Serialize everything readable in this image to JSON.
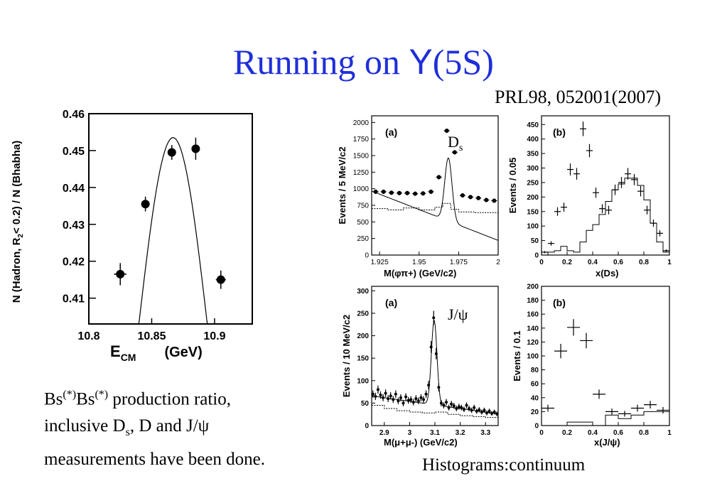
{
  "slide": {
    "title_prefix": "Running on ",
    "title_upsilon": "Υ",
    "title_suffix": "(5S)",
    "reference": "PRL98, 052001(2007)",
    "caption_lines": [
      [
        "Bs",
        "(*)",
        "Bs",
        "(*)",
        " production ratio,"
      ],
      [
        "inclusive D",
        "s",
        ", D and J/ψ"
      ],
      [
        "measurements have been done."
      ]
    ],
    "histogram_note": "Histograms:continuum"
  },
  "chart_data": [
    {
      "id": "scan",
      "type": "scatter",
      "xlabel_main": "E",
      "xlabel_sub": "CM",
      "xunit": "(GeV)",
      "ylabel": "N (Hadron, R2< 0.2) / N (Bhabha)",
      "ylabel_parts": [
        "N (Hadron, R",
        "2",
        "< 0.2) / N (Bhabha)"
      ],
      "xlim": [
        10.8,
        10.93
      ],
      "ylim": [
        0.403,
        0.46
      ],
      "xticks": [
        10.8,
        10.85,
        10.9
      ],
      "xticklabels": [
        "10.8",
        "10.85",
        "10.9"
      ],
      "yticks": [
        0.41,
        0.42,
        0.43,
        0.44,
        0.45,
        0.46
      ],
      "yticklabels": [
        "0.41",
        "0.42",
        "0.43",
        "0.44",
        "0.45",
        "0.46"
      ],
      "points": [
        {
          "x": 10.825,
          "y": 0.4165,
          "xerr": 0.005,
          "yerr": 0.003
        },
        {
          "x": 10.845,
          "y": 0.4355,
          "xerr": 0.003,
          "yerr": 0.002
        },
        {
          "x": 10.866,
          "y": 0.4495,
          "xerr": 0.003,
          "yerr": 0.002
        },
        {
          "x": 10.885,
          "y": 0.4505,
          "xerr": 0.003,
          "yerr": 0.003
        },
        {
          "x": 10.905,
          "y": 0.415,
          "xerr": 0.004,
          "yerr": 0.0025
        }
      ],
      "fit": {
        "peak_x": 10.867,
        "peak_y": 0.4535,
        "width": 0.0272,
        "x_range": [
          10.815,
          10.918
        ]
      }
    },
    {
      "id": "ds-mass",
      "type": "scatter",
      "panel_label": "(a)",
      "annotation": "Ds",
      "annotation_main": "D",
      "annotation_sub": "s",
      "xlabel": "M(φπ+)   (GeV/c2)",
      "ylabel": "Events / 5 MeV/c2",
      "xlim": [
        1.92,
        2.0
      ],
      "ylim": [
        0,
        2100
      ],
      "xticks": [
        1.925,
        1.95,
        1.975,
        2.0
      ],
      "xticklabels": [
        "1.925",
        "1.95",
        "1.975",
        "2"
      ],
      "yticks": [
        0,
        250,
        500,
        750,
        1000,
        1250,
        1500,
        1750,
        2000
      ],
      "yticklabels": [
        "0",
        "250",
        "500",
        "750",
        "1000",
        "1250",
        "1500",
        "1750",
        "2000"
      ],
      "points": [
        {
          "x": 1.9225,
          "y": 955
        },
        {
          "x": 1.9275,
          "y": 955
        },
        {
          "x": 1.9325,
          "y": 940
        },
        {
          "x": 1.9375,
          "y": 935
        },
        {
          "x": 1.9425,
          "y": 935
        },
        {
          "x": 1.9475,
          "y": 925
        },
        {
          "x": 1.9525,
          "y": 930
        },
        {
          "x": 1.9575,
          "y": 955
        },
        {
          "x": 1.9625,
          "y": 1175
        },
        {
          "x": 1.9675,
          "y": 1875
        },
        {
          "x": 1.9725,
          "y": 1550
        },
        {
          "x": 1.9775,
          "y": 900
        },
        {
          "x": 1.9825,
          "y": 875
        },
        {
          "x": 1.9875,
          "y": 860
        },
        {
          "x": 1.9925,
          "y": 830
        },
        {
          "x": 1.9975,
          "y": 820
        },
        {
          "x": 2.0025,
          "y": 790
        }
      ],
      "fit": {
        "bg_a": 965,
        "bg_slope": -9300,
        "x0": 1.92,
        "peak_x": 1.9685,
        "peak_amp": 950,
        "sigma": 0.0023
      },
      "continuum": [
        {
          "x0": 1.92,
          "x1": 1.93,
          "y": 700
        },
        {
          "x0": 1.93,
          "x1": 1.94,
          "y": 680
        },
        {
          "x0": 1.94,
          "x1": 1.95,
          "y": 710
        },
        {
          "x0": 1.95,
          "x1": 1.96,
          "y": 680
        },
        {
          "x0": 1.96,
          "x1": 1.965,
          "y": 720
        },
        {
          "x0": 1.965,
          "x1": 1.97,
          "y": 780
        },
        {
          "x0": 1.97,
          "x1": 1.975,
          "y": 690
        },
        {
          "x0": 1.975,
          "x1": 1.985,
          "y": 650
        },
        {
          "x0": 1.985,
          "x1": 2.005,
          "y": 640
        }
      ]
    },
    {
      "id": "ds-momentum",
      "type": "scatter",
      "panel_label": "(b)",
      "xlabel": "x(Ds)",
      "ylabel": "Events / 0.05",
      "xlim": [
        0,
        1
      ],
      "ylim": [
        0,
        480
      ],
      "xticks": [
        0,
        0.2,
        0.4,
        0.6,
        0.8,
        1
      ],
      "xticklabels": [
        "0",
        "0.2",
        "0.4",
        "0.6",
        "0.8",
        "1"
      ],
      "yticks": [
        0,
        50,
        100,
        150,
        200,
        250,
        300,
        350,
        400,
        450
      ],
      "yticklabels": [
        "0",
        "50",
        "100",
        "150",
        "200",
        "250",
        "300",
        "350",
        "400",
        "450"
      ],
      "points": [
        {
          "x": 0.025,
          "y": 10
        },
        {
          "x": 0.075,
          "y": 40
        },
        {
          "x": 0.125,
          "y": 150
        },
        {
          "x": 0.175,
          "y": 165
        },
        {
          "x": 0.225,
          "y": 295
        },
        {
          "x": 0.275,
          "y": 280
        },
        {
          "x": 0.325,
          "y": 435
        },
        {
          "x": 0.375,
          "y": 360
        },
        {
          "x": 0.425,
          "y": 215
        },
        {
          "x": 0.475,
          "y": 160
        },
        {
          "x": 0.525,
          "y": 155
        },
        {
          "x": 0.575,
          "y": 225
        },
        {
          "x": 0.625,
          "y": 250
        },
        {
          "x": 0.675,
          "y": 280
        },
        {
          "x": 0.725,
          "y": 260
        },
        {
          "x": 0.775,
          "y": 220
        },
        {
          "x": 0.825,
          "y": 155
        },
        {
          "x": 0.875,
          "y": 110
        },
        {
          "x": 0.925,
          "y": 75
        },
        {
          "x": 0.975,
          "y": 15
        }
      ],
      "continuum": [
        {
          "x0": 0.0,
          "x1": 0.05,
          "y": 0
        },
        {
          "x0": 0.05,
          "x1": 0.1,
          "y": 10
        },
        {
          "x0": 0.1,
          "x1": 0.15,
          "y": 15
        },
        {
          "x0": 0.15,
          "x1": 0.2,
          "y": 30
        },
        {
          "x0": 0.2,
          "x1": 0.25,
          "y": 15
        },
        {
          "x0": 0.25,
          "x1": 0.3,
          "y": 10
        },
        {
          "x0": 0.3,
          "x1": 0.35,
          "y": 45
        },
        {
          "x0": 0.35,
          "x1": 0.4,
          "y": 85
        },
        {
          "x0": 0.4,
          "x1": 0.45,
          "y": 105
        },
        {
          "x0": 0.45,
          "x1": 0.5,
          "y": 140
        },
        {
          "x0": 0.5,
          "x1": 0.55,
          "y": 185
        },
        {
          "x0": 0.55,
          "x1": 0.6,
          "y": 225
        },
        {
          "x0": 0.6,
          "x1": 0.65,
          "y": 245
        },
        {
          "x0": 0.65,
          "x1": 0.7,
          "y": 265
        },
        {
          "x0": 0.7,
          "x1": 0.75,
          "y": 265
        },
        {
          "x0": 0.75,
          "x1": 0.8,
          "y": 240
        },
        {
          "x0": 0.8,
          "x1": 0.85,
          "y": 190
        },
        {
          "x0": 0.85,
          "x1": 0.9,
          "y": 110
        },
        {
          "x0": 0.9,
          "x1": 0.95,
          "y": 45
        },
        {
          "x0": 0.95,
          "x1": 1.0,
          "y": 10
        }
      ]
    },
    {
      "id": "jpsi-mass",
      "type": "scatter",
      "panel_label": "(a)",
      "annotation": "J/ψ",
      "xlabel": "M(μ+μ-)   (GeV/c2)",
      "ylabel": "Events / 10 MeV/c2",
      "xlim": [
        2.85,
        3.35
      ],
      "ylim": [
        0,
        310
      ],
      "xticks": [
        2.9,
        3.0,
        3.1,
        3.2,
        3.3
      ],
      "xticklabels": [
        "2.9",
        "3",
        "3.1",
        "3.2",
        "3.3"
      ],
      "yticks": [
        0,
        50,
        100,
        150,
        200,
        250,
        300
      ],
      "yticklabels": [
        "0",
        "50",
        "100",
        "150",
        "200",
        "250",
        "300"
      ],
      "points": [
        {
          "x": 2.855,
          "y": 70
        },
        {
          "x": 2.865,
          "y": 65
        },
        {
          "x": 2.875,
          "y": 80
        },
        {
          "x": 2.885,
          "y": 68
        },
        {
          "x": 2.895,
          "y": 62
        },
        {
          "x": 2.905,
          "y": 72
        },
        {
          "x": 2.915,
          "y": 60
        },
        {
          "x": 2.925,
          "y": 66
        },
        {
          "x": 2.935,
          "y": 58
        },
        {
          "x": 2.945,
          "y": 70
        },
        {
          "x": 2.955,
          "y": 55
        },
        {
          "x": 2.965,
          "y": 62
        },
        {
          "x": 2.975,
          "y": 50
        },
        {
          "x": 2.985,
          "y": 64
        },
        {
          "x": 2.995,
          "y": 56
        },
        {
          "x": 3.005,
          "y": 58
        },
        {
          "x": 3.015,
          "y": 52
        },
        {
          "x": 3.025,
          "y": 60
        },
        {
          "x": 3.035,
          "y": 55
        },
        {
          "x": 3.045,
          "y": 62
        },
        {
          "x": 3.055,
          "y": 58
        },
        {
          "x": 3.065,
          "y": 70
        },
        {
          "x": 3.075,
          "y": 90
        },
        {
          "x": 3.085,
          "y": 175
        },
        {
          "x": 3.095,
          "y": 240
        },
        {
          "x": 3.105,
          "y": 160
        },
        {
          "x": 3.115,
          "y": 85
        },
        {
          "x": 3.125,
          "y": 50
        },
        {
          "x": 3.135,
          "y": 45
        },
        {
          "x": 3.145,
          "y": 52
        },
        {
          "x": 3.155,
          "y": 40
        },
        {
          "x": 3.165,
          "y": 48
        },
        {
          "x": 3.175,
          "y": 44
        },
        {
          "x": 3.185,
          "y": 38
        },
        {
          "x": 3.195,
          "y": 42
        },
        {
          "x": 3.205,
          "y": 40
        },
        {
          "x": 3.215,
          "y": 36
        },
        {
          "x": 3.225,
          "y": 45
        },
        {
          "x": 3.235,
          "y": 38
        },
        {
          "x": 3.245,
          "y": 34
        },
        {
          "x": 3.255,
          "y": 40
        },
        {
          "x": 3.265,
          "y": 32
        },
        {
          "x": 3.275,
          "y": 35
        },
        {
          "x": 3.285,
          "y": 30
        },
        {
          "x": 3.295,
          "y": 34
        },
        {
          "x": 3.305,
          "y": 28
        },
        {
          "x": 3.315,
          "y": 32
        },
        {
          "x": 3.325,
          "y": 27
        },
        {
          "x": 3.335,
          "y": 30
        },
        {
          "x": 3.345,
          "y": 26
        }
      ],
      "fit": {
        "bg_a": 66,
        "bg_slope": -80,
        "x0": 2.85,
        "peak_x": 3.097,
        "peak_amp": 188,
        "sigma": 0.011
      },
      "continuum": [
        {
          "x0": 2.85,
          "x1": 2.9,
          "y": 45
        },
        {
          "x0": 2.9,
          "x1": 2.95,
          "y": 38
        },
        {
          "x0": 2.95,
          "x1": 3.0,
          "y": 33
        },
        {
          "x0": 3.0,
          "x1": 3.05,
          "y": 30
        },
        {
          "x0": 3.05,
          "x1": 3.1,
          "y": 28
        },
        {
          "x0": 3.1,
          "x1": 3.15,
          "y": 30
        },
        {
          "x0": 3.15,
          "x1": 3.2,
          "y": 25
        },
        {
          "x0": 3.2,
          "x1": 3.25,
          "y": 22
        },
        {
          "x0": 3.25,
          "x1": 3.3,
          "y": 20
        },
        {
          "x0": 3.3,
          "x1": 3.35,
          "y": 18
        }
      ]
    },
    {
      "id": "jpsi-momentum",
      "type": "scatter",
      "panel_label": "(b)",
      "xlabel": "x(J/ψ)",
      "ylabel": "Events / 0.1",
      "xlim": [
        0,
        1
      ],
      "ylim": [
        0,
        200
      ],
      "xticks": [
        0,
        0.2,
        0.4,
        0.6,
        0.8,
        1
      ],
      "xticklabels": [
        "0",
        "0.2",
        "0.4",
        "0.6",
        "0.8",
        "1"
      ],
      "yticks": [
        0,
        20,
        40,
        60,
        80,
        100,
        120,
        140,
        160,
        180,
        200
      ],
      "yticklabels": [
        "0",
        "20",
        "40",
        "60",
        "80",
        "100",
        "120",
        "140",
        "160",
        "180",
        "200"
      ],
      "points": [
        {
          "x": 0.05,
          "y": 25
        },
        {
          "x": 0.15,
          "y": 107
        },
        {
          "x": 0.25,
          "y": 141
        },
        {
          "x": 0.35,
          "y": 122
        },
        {
          "x": 0.45,
          "y": 45
        },
        {
          "x": 0.55,
          "y": 20
        },
        {
          "x": 0.65,
          "y": 17
        },
        {
          "x": 0.75,
          "y": 25
        },
        {
          "x": 0.85,
          "y": 30
        },
        {
          "x": 0.95,
          "y": 22
        }
      ],
      "continuum": [
        {
          "x0": 0.0,
          "x1": 0.2,
          "y": 0
        },
        {
          "x0": 0.2,
          "x1": 0.4,
          "y": 5
        },
        {
          "x0": 0.4,
          "x1": 0.5,
          "y": 0
        },
        {
          "x0": 0.5,
          "x1": 0.6,
          "y": 15
        },
        {
          "x0": 0.6,
          "x1": 0.7,
          "y": 10
        },
        {
          "x0": 0.7,
          "x1": 0.8,
          "y": 15
        },
        {
          "x0": 0.8,
          "x1": 0.9,
          "y": 20
        },
        {
          "x0": 0.9,
          "x1": 1.0,
          "y": 20
        }
      ]
    }
  ]
}
